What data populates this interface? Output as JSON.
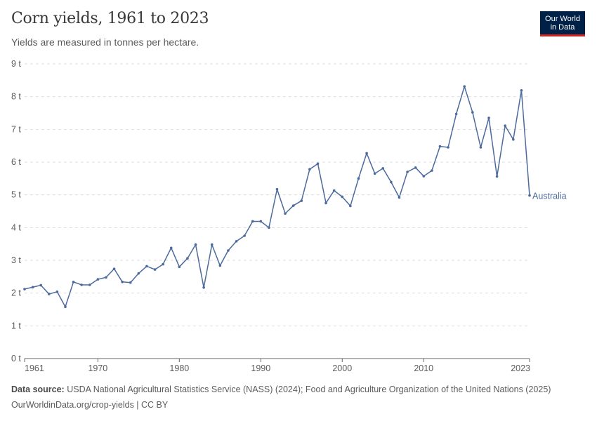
{
  "header": {
    "title": "Corn yields, 1961 to 2023",
    "subtitle": "Yields are measured in tonnes per hectare.",
    "logo_line1": "Our World",
    "logo_line2": "in Data"
  },
  "footer": {
    "source_label": "Data source:",
    "source_text": "USDA National Agricultural Statistics Service (NASS) (2024); Food and Agriculture Organization of the United Nations (2025)",
    "url_text": "OurWorldinData.org/crop-yields | CC BY"
  },
  "colors": {
    "series": "#4c6a9c",
    "grid": "#dddddd",
    "axis": "#666666",
    "text": "#5b5b5b"
  },
  "chart_data": {
    "type": "line",
    "title": "Corn yields, 1961 to 2023",
    "subtitle": "Yields are measured in tonnes per hectare.",
    "xlabel": "",
    "ylabel": "",
    "xlim": [
      1961,
      2023
    ],
    "ylim": [
      0,
      9
    ],
    "yticks": [
      0,
      1,
      2,
      3,
      4,
      5,
      6,
      7,
      8,
      9
    ],
    "ytick_labels": [
      "0 t",
      "1 t",
      "2 t",
      "3 t",
      "4 t",
      "5 t",
      "6 t",
      "7 t",
      "8 t",
      "9 t"
    ],
    "xticks": [
      1961,
      1970,
      1980,
      1990,
      2000,
      2010,
      2023
    ],
    "xtick_labels": [
      "1961",
      "1970",
      "1980",
      "1990",
      "2000",
      "2010",
      "2023"
    ],
    "grid": true,
    "series": [
      {
        "name": "Australia",
        "x": [
          1961,
          1962,
          1963,
          1964,
          1965,
          1966,
          1967,
          1968,
          1969,
          1970,
          1971,
          1972,
          1973,
          1974,
          1975,
          1976,
          1977,
          1978,
          1979,
          1980,
          1981,
          1982,
          1983,
          1984,
          1985,
          1986,
          1987,
          1988,
          1989,
          1990,
          1991,
          1992,
          1993,
          1994,
          1995,
          1996,
          1997,
          1998,
          1999,
          2000,
          2001,
          2002,
          2003,
          2004,
          2005,
          2006,
          2007,
          2008,
          2009,
          2010,
          2011,
          2012,
          2013,
          2014,
          2015,
          2016,
          2017,
          2018,
          2019,
          2020,
          2021,
          2022,
          2023
        ],
        "y": [
          2.12,
          2.18,
          2.24,
          1.97,
          2.04,
          1.58,
          2.34,
          2.25,
          2.25,
          2.42,
          2.48,
          2.74,
          2.34,
          2.32,
          2.6,
          2.82,
          2.72,
          2.88,
          3.38,
          2.8,
          3.06,
          3.48,
          2.17,
          3.48,
          2.84,
          3.3,
          3.58,
          3.75,
          4.19,
          4.19,
          4.0,
          5.17,
          4.43,
          4.67,
          4.82,
          5.78,
          5.95,
          4.75,
          5.13,
          4.94,
          4.66,
          5.5,
          6.27,
          5.65,
          5.81,
          5.39,
          4.92,
          5.7,
          5.83,
          5.57,
          5.74,
          6.48,
          6.45,
          7.47,
          8.31,
          7.52,
          6.45,
          7.35,
          5.56,
          7.11,
          6.69,
          8.19,
          4.98
        ]
      }
    ]
  }
}
